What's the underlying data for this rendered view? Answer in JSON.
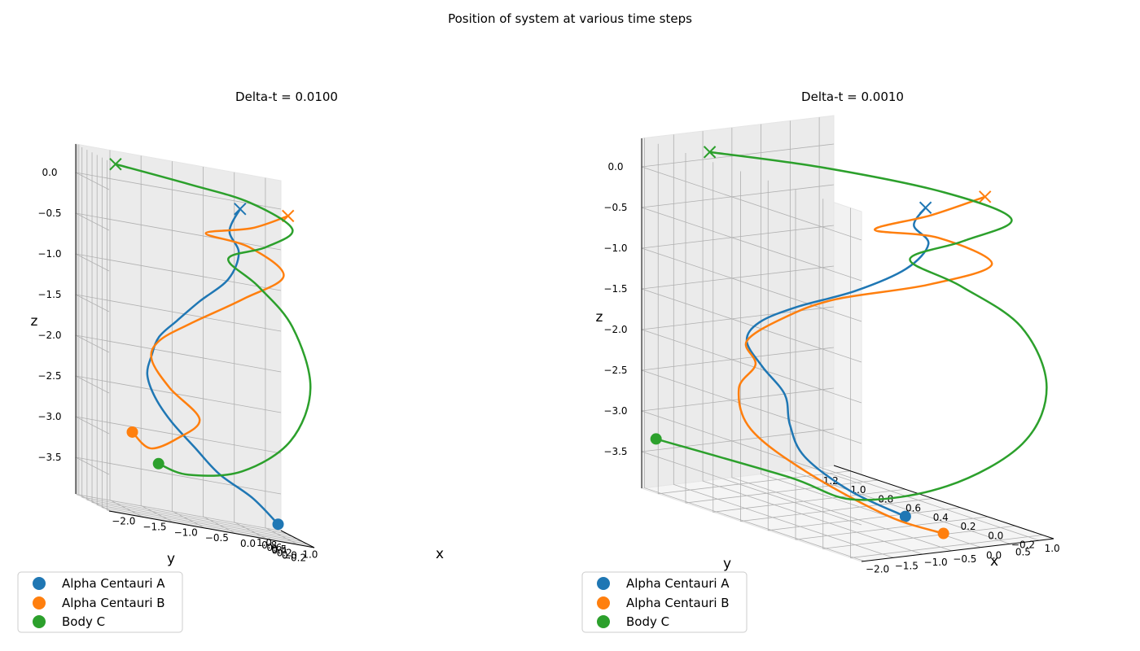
{
  "figure": {
    "suptitle": "Position of system at various time steps"
  },
  "colors": {
    "body_a": "#1f77b4",
    "body_b": "#ff7f0e",
    "body_c": "#2ca02c",
    "pane": "#f2f2f2",
    "grid": "#b0b0b0"
  },
  "legend": {
    "placement": "lower-left",
    "entries": [
      "Alpha Centauri A",
      "Alpha Centauri B",
      "Body C"
    ]
  },
  "chart_data": [
    {
      "type": "line",
      "projection": "3d",
      "title": "Delta-t = 0.0100",
      "xlabel": "x",
      "ylabel": "y",
      "zlabel": "z",
      "x_ticks": [
        "−2.0",
        "−1.5",
        "−1.0",
        "−0.5",
        "0.0",
        "0.5",
        "1.0"
      ],
      "y_ticks": [
        "−0.2",
        "0.0",
        "0.2",
        "0.4",
        "0.6",
        "0.8",
        "1.0"
      ],
      "z_ticks": [
        "−3.5",
        "−3.0",
        "−2.5",
        "−2.0",
        "−1.5",
        "−1.0",
        "−0.5",
        "0.0"
      ],
      "grid": true,
      "series": [
        {
          "name": "Alpha Centauri A",
          "start": {
            "x": 0.7,
            "y": -0.2,
            "z": -3.75
          },
          "end": {
            "x": 0.25,
            "y": 0.2,
            "z": 0.0
          },
          "points": [
            [
              0.7,
              -0.2,
              -3.75
            ],
            [
              0.35,
              -0.05,
              -3.5
            ],
            [
              -0.1,
              0.15,
              -3.3
            ],
            [
              -0.4,
              0.4,
              -3.05
            ],
            [
              -0.7,
              0.6,
              -2.8
            ],
            [
              -0.9,
              0.75,
              -2.55
            ],
            [
              -1.0,
              0.8,
              -2.3
            ],
            [
              -0.95,
              0.75,
              -2.05
            ],
            [
              -0.85,
              0.7,
              -1.8
            ],
            [
              -0.6,
              0.6,
              -1.55
            ],
            [
              -0.3,
              0.45,
              -1.25
            ],
            [
              0.1,
              0.3,
              -0.9
            ],
            [
              0.25,
              0.25,
              -0.55
            ],
            [
              0.1,
              0.25,
              -0.3
            ],
            [
              0.25,
              0.2,
              0.0
            ]
          ]
        },
        {
          "name": "Alpha Centauri B",
          "start": {
            "x": -1.2,
            "y": 0.9,
            "z": -3.05
          },
          "end": {
            "x": 0.9,
            "y": -0.1,
            "z": 0.05
          },
          "points": [
            [
              -1.2,
              0.9,
              -3.05
            ],
            [
              -0.95,
              0.8,
              -3.2
            ],
            [
              -0.6,
              0.6,
              -3.0
            ],
            [
              -0.3,
              0.45,
              -2.7
            ],
            [
              -0.7,
              0.65,
              -2.4
            ],
            [
              -0.95,
              0.75,
              -2.1
            ],
            [
              -0.85,
              0.7,
              -1.85
            ],
            [
              -0.4,
              0.55,
              -1.55
            ],
            [
              0.3,
              0.2,
              -1.1
            ],
            [
              0.85,
              -0.05,
              -0.7
            ],
            [
              0.4,
              0.2,
              -0.45
            ],
            [
              -0.2,
              0.45,
              -0.4
            ],
            [
              0.4,
              0.1,
              -0.2
            ],
            [
              0.9,
              -0.1,
              0.05
            ]
          ]
        },
        {
          "name": "Body C",
          "start": {
            "x": -0.9,
            "y": 0.6,
            "z": -3.35
          },
          "end": {
            "x": -1.45,
            "y": 0.95,
            "z": 0.2
          },
          "points": [
            [
              -0.9,
              0.6,
              -3.35
            ],
            [
              -0.5,
              0.4,
              -3.4
            ],
            [
              0.2,
              0.0,
              -3.2
            ],
            [
              0.9,
              -0.2,
              -2.7
            ],
            [
              1.2,
              -0.25,
              -2.0
            ],
            [
              0.95,
              -0.15,
              -1.3
            ],
            [
              0.5,
              0.1,
              -0.9
            ],
            [
              0.1,
              0.3,
              -0.65
            ],
            [
              0.6,
              0.05,
              -0.4
            ],
            [
              0.95,
              -0.15,
              -0.1
            ],
            [
              0.4,
              0.2,
              0.1
            ],
            [
              -0.4,
              0.6,
              0.15
            ],
            [
              -1.45,
              0.95,
              0.2
            ]
          ]
        }
      ]
    },
    {
      "type": "line",
      "projection": "3d",
      "title": "Delta-t = 0.0010",
      "xlabel": "x",
      "ylabel": "y",
      "zlabel": "z",
      "x_ticks": [
        "−2.0",
        "−1.5",
        "−1.0",
        "−0.5",
        "0.0",
        "0.5",
        "1.0"
      ],
      "y_ticks": [
        "−0.2",
        "0.0",
        "0.2",
        "0.4",
        "0.6",
        "0.8",
        "1.0",
        "1.2"
      ],
      "z_ticks": [
        "−3.5",
        "−3.0",
        "−2.5",
        "−2.0",
        "−1.5",
        "−1.0",
        "−0.5",
        "0.0"
      ],
      "grid": true,
      "series": [
        {
          "name": "Alpha Centauri A",
          "start": {
            "x": -0.4,
            "y": 0.1,
            "z": -3.75
          },
          "end": {
            "x": 0.3,
            "y": 0.25,
            "z": -0.1
          },
          "points": [
            [
              -0.4,
              0.1,
              -3.75
            ],
            [
              -0.75,
              0.35,
              -3.55
            ],
            [
              -0.95,
              0.6,
              -3.25
            ],
            [
              -0.85,
              0.75,
              -2.95
            ],
            [
              -0.7,
              0.85,
              -2.65
            ],
            [
              -0.85,
              0.95,
              -2.35
            ],
            [
              -1.0,
              1.0,
              -2.05
            ],
            [
              -0.9,
              0.95,
              -1.8
            ],
            [
              -0.6,
              0.8,
              -1.55
            ],
            [
              -0.2,
              0.55,
              -1.25
            ],
            [
              0.2,
              0.35,
              -0.9
            ],
            [
              0.35,
              0.25,
              -0.55
            ],
            [
              0.1,
              0.25,
              -0.3
            ],
            [
              0.3,
              0.25,
              -0.1
            ]
          ]
        },
        {
          "name": "Alpha Centauri B",
          "start": {
            "x": -0.1,
            "y": -0.05,
            "z": -3.9
          },
          "end": {
            "x": 0.85,
            "y": 0.05,
            "z": 0.1
          },
          "points": [
            [
              -0.1,
              -0.05,
              -3.9
            ],
            [
              -0.45,
              0.2,
              -3.8
            ],
            [
              -0.9,
              0.6,
              -3.45
            ],
            [
              -1.05,
              0.95,
              -3.1
            ],
            [
              -0.9,
              1.1,
              -2.7
            ],
            [
              -0.85,
              1.0,
              -2.35
            ],
            [
              -1.0,
              1.0,
              -2.05
            ],
            [
              -0.7,
              0.85,
              -1.7
            ],
            [
              -0.3,
              0.65,
              -1.4
            ],
            [
              0.35,
              0.25,
              -1.05
            ],
            [
              0.85,
              0.0,
              -0.7
            ],
            [
              0.4,
              0.2,
              -0.45
            ],
            [
              -0.1,
              0.45,
              -0.45
            ],
            [
              0.4,
              0.25,
              -0.2
            ],
            [
              0.85,
              0.05,
              0.1
            ]
          ]
        },
        {
          "name": "Body C",
          "start": {
            "x": -1.85,
            "y": 1.3,
            "z": -3.35
          },
          "end": {
            "x": -1.4,
            "y": 1.1,
            "z": 0.25
          },
          "points": [
            [
              -1.85,
              1.3,
              -3.35
            ],
            [
              -1.0,
              0.7,
              -3.55
            ],
            [
              -0.55,
              0.4,
              -3.7
            ],
            [
              0.2,
              0.05,
              -3.4
            ],
            [
              0.9,
              -0.2,
              -2.8
            ],
            [
              1.2,
              -0.25,
              -2.1
            ],
            [
              1.0,
              -0.15,
              -1.4
            ],
            [
              0.55,
              0.1,
              -1.0
            ],
            [
              0.15,
              0.3,
              -0.75
            ],
            [
              0.6,
              0.1,
              -0.45
            ],
            [
              0.95,
              -0.1,
              -0.1
            ],
            [
              0.5,
              0.2,
              0.1
            ],
            [
              -0.4,
              0.7,
              0.2
            ],
            [
              -1.4,
              1.1,
              0.25
            ]
          ]
        }
      ]
    }
  ]
}
